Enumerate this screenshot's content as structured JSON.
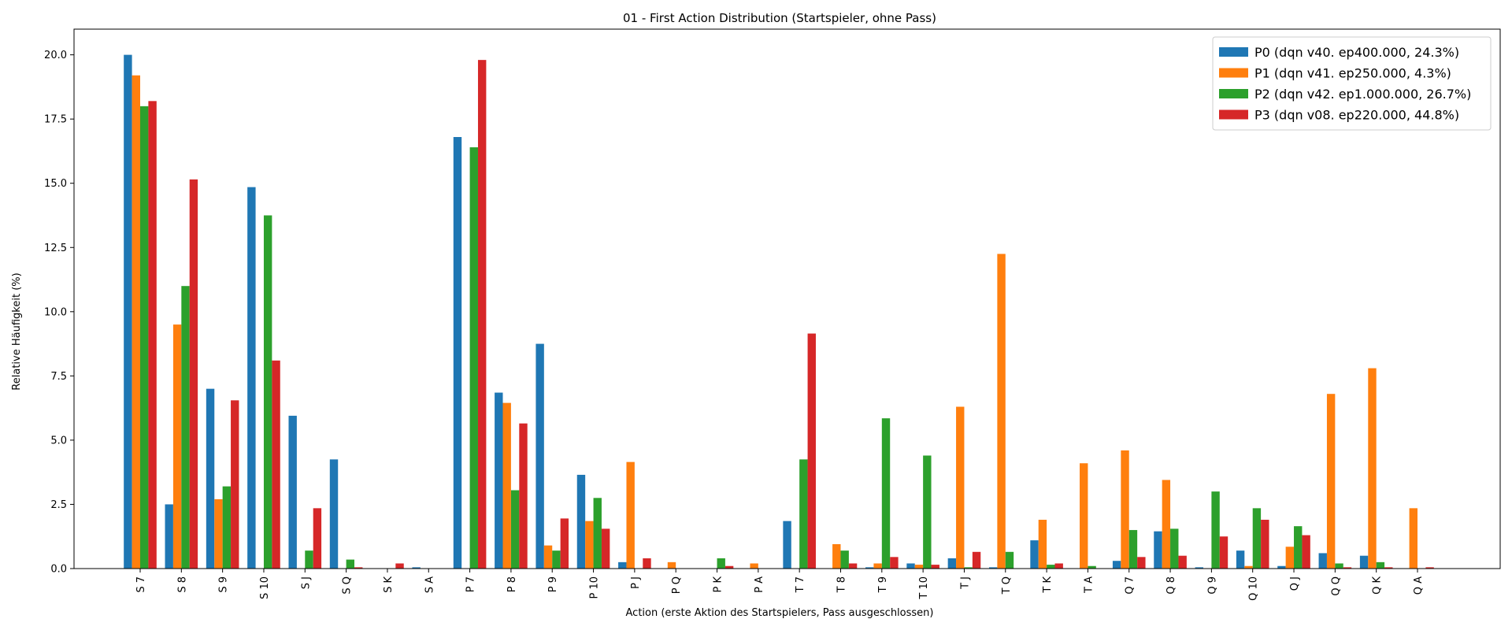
{
  "chart_data": {
    "type": "bar",
    "title": "01 - First Action Distribution (Startspieler, ohne Pass)",
    "xlabel": "Action (erste Aktion des Startspielers, Pass ausgeschlossen)",
    "ylabel": "Relative Häufigkeit (%)",
    "ylim": [
      0,
      21
    ],
    "yticks": [
      "0.0",
      "2.5",
      "5.0",
      "7.5",
      "10.0",
      "12.5",
      "15.0",
      "17.5",
      "20.0"
    ],
    "legend_position": "top-right",
    "categories": [
      "S 7",
      "S 8",
      "S 9",
      "S 10",
      "S J",
      "S Q",
      "S K",
      "S A",
      "P 7",
      "P 8",
      "P 9",
      "P 10",
      "P J",
      "P Q",
      "P K",
      "P A",
      "T 7",
      "T 8",
      "T 9",
      "T 10",
      "T J",
      "T Q",
      "T K",
      "T A",
      "Q 7",
      "Q 8",
      "Q 9",
      "Q 10",
      "Q J",
      "Q Q",
      "Q K",
      "Q A"
    ],
    "series": [
      {
        "name": "P0 (dqn v40. ep400.000, 24.3%)",
        "color": "#1f77b4",
        "values": [
          20.0,
          2.5,
          7.0,
          14.85,
          5.95,
          4.25,
          0.0,
          0.05,
          16.8,
          6.85,
          8.75,
          3.65,
          0.25,
          0.0,
          0.0,
          0.0,
          1.85,
          0.0,
          0.05,
          0.2,
          0.4,
          0.05,
          1.1,
          0.0,
          0.3,
          1.45,
          0.05,
          0.7,
          0.1,
          0.6,
          0.5,
          0.0
        ]
      },
      {
        "name": "P1 (dqn v41. ep250.000, 4.3%)",
        "color": "#ff7f0e",
        "values": [
          19.2,
          9.5,
          2.7,
          0.0,
          0.0,
          0.0,
          0.0,
          0.0,
          0.0,
          6.45,
          0.9,
          1.85,
          4.15,
          0.25,
          0.0,
          0.2,
          0.0,
          0.95,
          0.2,
          0.15,
          6.3,
          12.25,
          1.9,
          4.1,
          4.6,
          3.45,
          0.0,
          0.1,
          0.85,
          6.8,
          7.8,
          2.35
        ]
      },
      {
        "name": "P2 (dqn v42. ep1.000.000, 26.7%)",
        "color": "#2ca02c",
        "values": [
          18.0,
          11.0,
          3.2,
          13.75,
          0.7,
          0.35,
          0.0,
          0.0,
          16.4,
          3.05,
          0.7,
          2.75,
          0.0,
          0.0,
          0.4,
          0.0,
          4.25,
          0.7,
          5.85,
          4.4,
          0.05,
          0.65,
          0.15,
          0.1,
          1.5,
          1.55,
          3.0,
          2.35,
          1.65,
          0.2,
          0.25,
          0.0
        ]
      },
      {
        "name": "P3 (dqn v08. ep220.000, 44.8%)",
        "color": "#d62728",
        "values": [
          18.2,
          15.15,
          6.55,
          8.1,
          2.35,
          0.05,
          0.2,
          0.0,
          19.8,
          5.65,
          1.95,
          1.55,
          0.4,
          0.0,
          0.1,
          0.0,
          9.15,
          0.2,
          0.45,
          0.15,
          0.65,
          0.0,
          0.2,
          0.0,
          0.45,
          0.5,
          1.25,
          1.9,
          1.3,
          0.05,
          0.05,
          0.05
        ]
      }
    ]
  }
}
